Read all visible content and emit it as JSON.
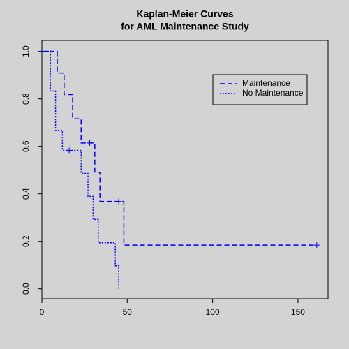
{
  "chart_data": {
    "type": "step",
    "title": [
      "Kaplan-Meier Curves",
      "for AML Maintenance Study"
    ],
    "xlim": [
      0,
      167.6
    ],
    "ylim": [
      -0.042,
      1.046
    ],
    "xticks": [
      0,
      50,
      100,
      150
    ],
    "yticks": [
      {
        "value": 0,
        "label": "0.0"
      },
      0.2,
      0.4,
      0.6,
      0.8,
      {
        "value": 1,
        "label": "1.0"
      }
    ],
    "legend": "top-right",
    "series": [
      {
        "name": "Maintenance",
        "color": "#0000ff",
        "line_style": "dashed",
        "x": [
          0,
          9,
          13,
          18,
          23,
          31,
          34,
          48,
          161
        ],
        "values": [
          1,
          0.909,
          0.818,
          0.716,
          0.614,
          0.491,
          0.368,
          0.184,
          0.184
        ],
        "censor_x": [
          28,
          45,
          161
        ],
        "censor_values": [
          0.614,
          0.368,
          0.184
        ]
      },
      {
        "name": "No Maintenance",
        "color": "#0000ff",
        "line_style": "dotted",
        "x": [
          0,
          5,
          8,
          12,
          23,
          27,
          30,
          33,
          43,
          45
        ],
        "values": [
          1,
          0.833,
          0.667,
          0.583,
          0.486,
          0.389,
          0.292,
          0.194,
          0.097,
          0
        ],
        "censor_x": [
          16
        ],
        "censor_values": [
          0.583
        ]
      }
    ]
  }
}
